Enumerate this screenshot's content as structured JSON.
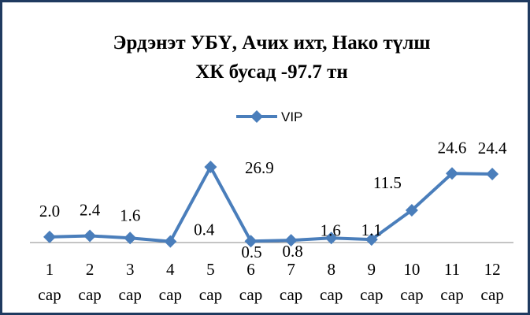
{
  "chart_data": {
    "type": "line",
    "title": [
      "Эрдэнэт УБҮ, Ачих ихт, Нако түлш",
      "ХК бусад  -97.7 тн"
    ],
    "categories": [
      [
        "1",
        "сар"
      ],
      [
        "2",
        "сар"
      ],
      [
        "3",
        "сар"
      ],
      [
        "4",
        "сар"
      ],
      [
        "5",
        "сар"
      ],
      [
        "6",
        "сар"
      ],
      [
        "7",
        "сар"
      ],
      [
        "8",
        "сар"
      ],
      [
        "9",
        "сар"
      ],
      [
        "10",
        "сар"
      ],
      [
        "11",
        "сар"
      ],
      [
        "12",
        "сар"
      ]
    ],
    "series": [
      {
        "name": "VIP",
        "color": "#4a7ebb",
        "values": [
          2.0,
          2.4,
          1.6,
          0.4,
          26.9,
          0.5,
          0.8,
          1.6,
          1.1,
          11.5,
          24.6,
          24.4
        ],
        "value_labels": [
          "2.0",
          "2.4",
          "1.6",
          "0.4",
          "26.9",
          "0.5",
          "0.8",
          "1.6",
          "1.1",
          "11.5",
          "24.6",
          "24.4"
        ]
      }
    ],
    "ylim": [
      0,
      30
    ],
    "legend": "top"
  }
}
